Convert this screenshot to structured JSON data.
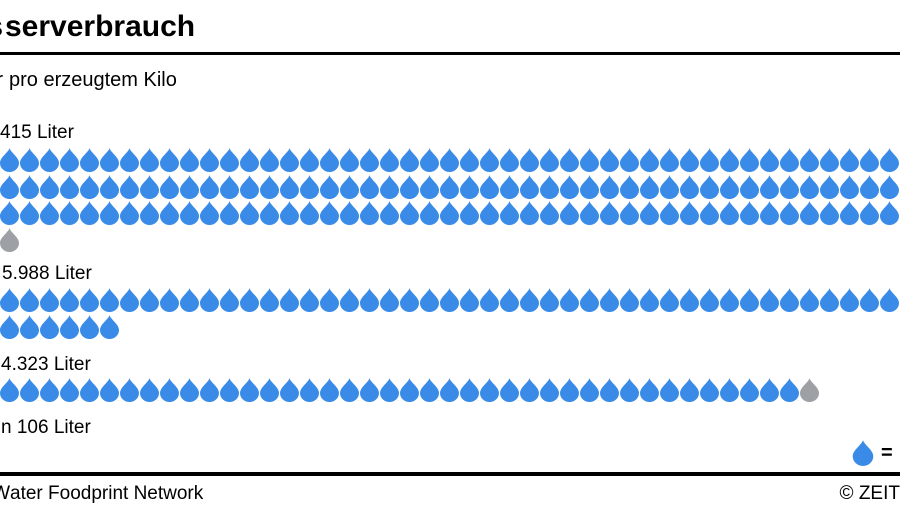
{
  "title": {
    "clipped_prefix": "s",
    "text": "serverbrauch"
  },
  "subtitle": {
    "clipped_prefix": "r",
    "text": "pro erzeugtem Kilo"
  },
  "legend": {
    "equals": "="
  },
  "footer": {
    "source_clipped_prefix": "W",
    "source_text": "ater Foodprint Network",
    "copyright": "© ZEIT"
  },
  "colors": {
    "drop_blue": "#3A8BE8",
    "drop_gray": "#9DA1A5",
    "text": "#000000",
    "rule": "#000000"
  },
  "chart_data": {
    "type": "pictogram",
    "title": "serverbrauch",
    "subtitle": "pro erzeugtem Kilo",
    "symbol": "water-drop",
    "legend_text_visible": "=",
    "groups": [
      {
        "label": "415 Liter",
        "rows": [
          {
            "blue": 45,
            "gray": 0
          },
          {
            "blue": 45,
            "gray": 0
          },
          {
            "blue": 45,
            "gray": 0
          },
          {
            "blue": 0,
            "gray": 1
          }
        ]
      },
      {
        "label": "5.988 Liter",
        "rows": [
          {
            "blue": 45,
            "gray": 0
          },
          {
            "blue": 6,
            "gray": 0
          }
        ]
      },
      {
        "label": "4.323 Liter",
        "rows": [
          {
            "blue": 40,
            "gray": 1
          }
        ]
      },
      {
        "label": "n 106 Liter",
        "rows": []
      }
    ]
  }
}
